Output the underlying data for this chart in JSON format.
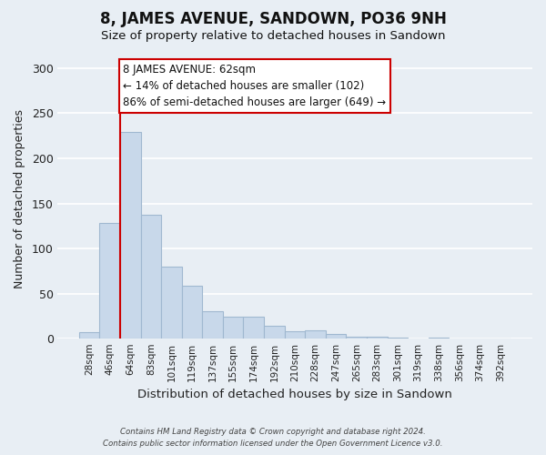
{
  "title": "8, JAMES AVENUE, SANDOWN, PO36 9NH",
  "subtitle": "Size of property relative to detached houses in Sandown",
  "xlabel": "Distribution of detached houses by size in Sandown",
  "ylabel": "Number of detached properties",
  "bar_labels": [
    "28sqm",
    "46sqm",
    "64sqm",
    "83sqm",
    "101sqm",
    "119sqm",
    "137sqm",
    "155sqm",
    "174sqm",
    "192sqm",
    "210sqm",
    "228sqm",
    "247sqm",
    "265sqm",
    "283sqm",
    "301sqm",
    "319sqm",
    "338sqm",
    "356sqm",
    "374sqm",
    "392sqm"
  ],
  "bar_values": [
    7,
    128,
    229,
    138,
    80,
    59,
    31,
    25,
    25,
    15,
    8,
    9,
    5,
    2,
    2,
    1,
    0,
    1,
    0,
    0,
    0
  ],
  "bar_color": "#c8d8ea",
  "bar_edge_color": "#a0b8d0",
  "highlight_color": "#cc0000",
  "highlight_index": 2,
  "ylim": [
    0,
    310
  ],
  "yticks": [
    0,
    50,
    100,
    150,
    200,
    250,
    300
  ],
  "annotation_title": "8 JAMES AVENUE: 62sqm",
  "annotation_line1": "← 14% of detached houses are smaller (102)",
  "annotation_line2": "86% of semi-detached houses are larger (649) →",
  "annotation_box_color": "#ffffff",
  "annotation_box_edge": "#cc0000",
  "footer_line1": "Contains HM Land Registry data © Crown copyright and database right 2024.",
  "footer_line2": "Contains public sector information licensed under the Open Government Licence v3.0.",
  "bg_color": "#e8eef4",
  "plot_bg_color": "#e8eef4",
  "grid_color": "#ffffff"
}
